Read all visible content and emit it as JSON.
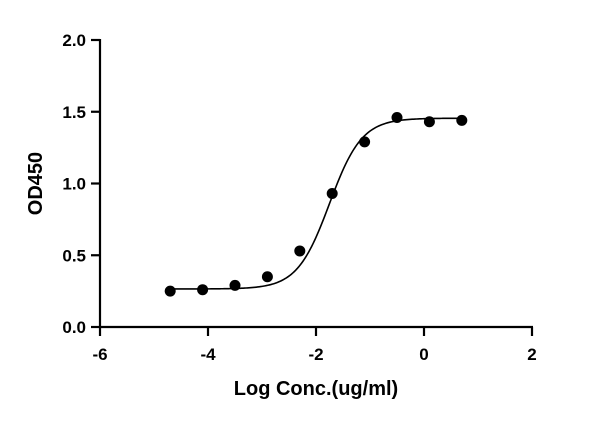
{
  "chart_data": {
    "type": "scatter",
    "title": "",
    "xlabel": "Log Conc.(ug/ml)",
    "ylabel": "OD450",
    "xlim": [
      -6,
      2
    ],
    "ylim": [
      0,
      2
    ],
    "x_ticks": [
      -6,
      -4,
      -2,
      0,
      2
    ],
    "x_tick_labels": [
      "-6",
      "-4",
      "-2",
      "0",
      "2"
    ],
    "y_ticks": [
      0,
      0.5,
      1,
      1.5,
      2
    ],
    "y_tick_labels": [
      "0.0",
      "0.5",
      "1.0",
      "1.5",
      "2.0"
    ],
    "grid": false,
    "legend": "none",
    "series": [
      {
        "x": [
          -4.7,
          -4.1,
          -3.5,
          -2.9,
          -2.3,
          -1.7,
          -1.1,
          -0.5,
          0.1,
          0.7
        ],
        "y": [
          0.25,
          0.26,
          0.29,
          0.35,
          0.53,
          0.93,
          1.29,
          1.46,
          1.43,
          1.44
        ]
      }
    ],
    "fit_curve": {
      "model": "four-parameter logistic",
      "bottom": 0.265,
      "top": 1.455,
      "ec50_log": -1.75,
      "hill_slope": 1.45,
      "x_range": [
        -4.7,
        0.7
      ]
    }
  }
}
